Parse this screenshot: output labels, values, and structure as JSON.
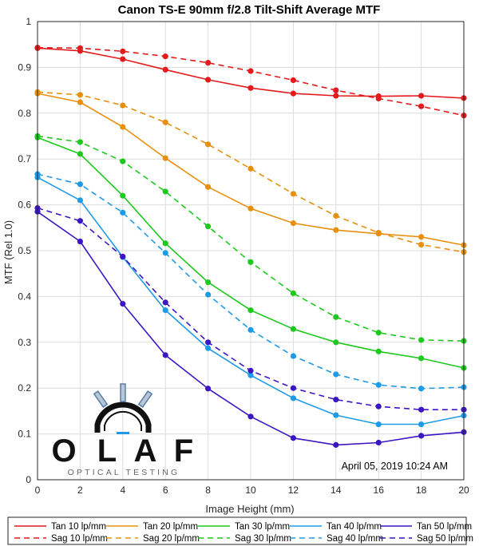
{
  "chart_data": {
    "type": "line",
    "title": "Canon TS-E 90mm f/2.8 Tilt-Shift Average MTF",
    "xlabel": "Image Height (mm)",
    "ylabel": "MTF (Rel 1.0)",
    "xlim": [
      0,
      20
    ],
    "ylim": [
      0,
      1
    ],
    "xticks": [
      0,
      2,
      4,
      6,
      8,
      10,
      12,
      14,
      16,
      18,
      20
    ],
    "yticks": [
      0,
      0.1,
      0.2,
      0.3,
      0.4,
      0.5,
      0.6,
      0.7,
      0.8,
      0.9,
      1
    ],
    "grid": true,
    "legend_position": "bottom",
    "x": [
      0,
      2,
      4,
      6,
      8,
      10,
      12,
      14,
      16,
      18,
      20
    ],
    "series": [
      {
        "name": "Tan 10 lp/mm",
        "style": "solid",
        "color": "#e41a1c",
        "values": [
          0.942,
          0.936,
          0.918,
          0.895,
          0.873,
          0.855,
          0.843,
          0.838,
          0.837,
          0.838,
          0.833
        ]
      },
      {
        "name": "Sag 10 lp/mm",
        "style": "dashed",
        "color": "#e41a1c",
        "values": [
          0.943,
          0.942,
          0.935,
          0.924,
          0.91,
          0.892,
          0.872,
          0.85,
          0.832,
          0.815,
          0.795
        ]
      },
      {
        "name": "Tan 20 lp/mm",
        "style": "solid",
        "color": "#e8900e",
        "values": [
          0.843,
          0.824,
          0.77,
          0.702,
          0.639,
          0.592,
          0.56,
          0.545,
          0.537,
          0.53,
          0.512
        ]
      },
      {
        "name": "Sag 20 lp/mm",
        "style": "dashed",
        "color": "#e8900e",
        "values": [
          0.846,
          0.84,
          0.817,
          0.78,
          0.732,
          0.679,
          0.624,
          0.576,
          0.539,
          0.513,
          0.497
        ]
      },
      {
        "name": "Tan 30 lp/mm",
        "style": "solid",
        "color": "#1dc91d",
        "values": [
          0.747,
          0.711,
          0.62,
          0.516,
          0.431,
          0.37,
          0.329,
          0.3,
          0.28,
          0.265,
          0.244
        ]
      },
      {
        "name": "Sag 30 lp/mm",
        "style": "dashed",
        "color": "#1dc91d",
        "values": [
          0.75,
          0.737,
          0.695,
          0.629,
          0.553,
          0.475,
          0.407,
          0.355,
          0.321,
          0.305,
          0.303
        ]
      },
      {
        "name": "Tan 40 lp/mm",
        "style": "solid",
        "color": "#1e9be8",
        "values": [
          0.66,
          0.61,
          0.486,
          0.37,
          0.287,
          0.228,
          0.178,
          0.141,
          0.121,
          0.121,
          0.14
        ]
      },
      {
        "name": "Sag 40 lp/mm",
        "style": "dashed",
        "color": "#1e9be8",
        "values": [
          0.667,
          0.645,
          0.583,
          0.495,
          0.404,
          0.327,
          0.27,
          0.23,
          0.207,
          0.199,
          0.202
        ]
      },
      {
        "name": "Tan 50 lp/mm",
        "style": "solid",
        "color": "#3d16c4",
        "values": [
          0.585,
          0.52,
          0.384,
          0.272,
          0.199,
          0.138,
          0.091,
          0.076,
          0.081,
          0.096,
          0.104
        ]
      },
      {
        "name": "Sag 50 lp/mm",
        "style": "dashed",
        "color": "#3d16c4",
        "values": [
          0.593,
          0.565,
          0.487,
          0.387,
          0.3,
          0.238,
          0.2,
          0.175,
          0.16,
          0.153,
          0.153
        ]
      }
    ],
    "annotation": "April 05, 2019 10:24 AM",
    "logo": {
      "text": "OLAF",
      "subtitle": "OPTICAL TESTING"
    }
  }
}
